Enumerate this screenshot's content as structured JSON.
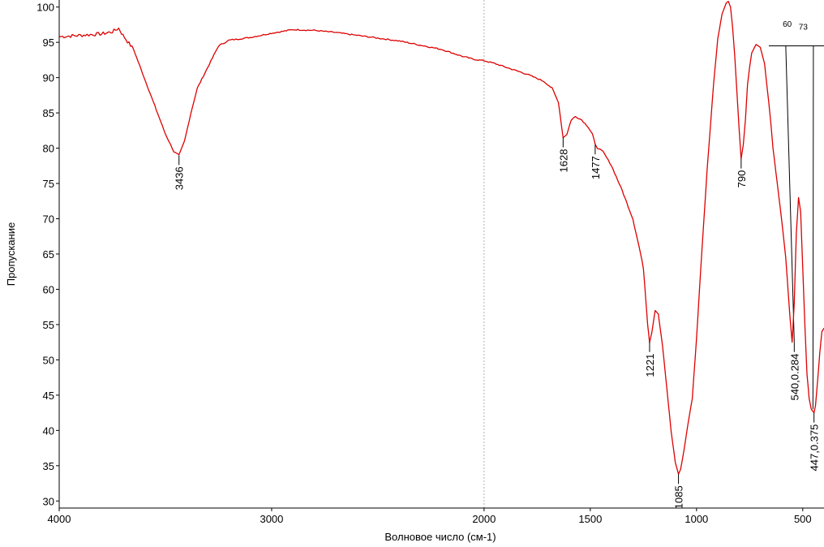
{
  "chart_data": {
    "type": "line",
    "title": "",
    "xlabel": "Волновое число (см-1)",
    "ylabel": "Пропускание",
    "xlim": [
      4000,
      400
    ],
    "ylim": [
      29,
      101
    ],
    "x_ticks": [
      4000,
      3000,
      2000,
      1500,
      1000,
      500
    ],
    "y_ticks": [
      30,
      35,
      40,
      45,
      50,
      55,
      60,
      65,
      70,
      75,
      80,
      85,
      90,
      95,
      100
    ],
    "x_tick_labels": [
      "4000",
      "3000",
      "2000",
      "1500",
      "1000",
      "500"
    ],
    "y_tick_labels": [
      "30",
      "35",
      "40",
      "45",
      "50",
      "55",
      "60",
      "65",
      "70",
      "75",
      "80",
      "85",
      "90",
      "95",
      "100"
    ],
    "reference_line_x": 2000,
    "line_color": "#dd0000",
    "series": [
      {
        "color": "#dd0000",
        "x": [
          4000,
          3900,
          3800,
          3750,
          3720,
          3700,
          3650,
          3600,
          3550,
          3500,
          3460,
          3436,
          3410,
          3380,
          3350,
          3300,
          3250,
          3200,
          3100,
          3000,
          2900,
          2800,
          2700,
          2600,
          2500,
          2400,
          2300,
          2200,
          2100,
          2050,
          2000,
          1950,
          1900,
          1850,
          1800,
          1760,
          1720,
          1680,
          1650,
          1628,
          1610,
          1590,
          1570,
          1540,
          1510,
          1490,
          1477,
          1465,
          1440,
          1400,
          1350,
          1300,
          1270,
          1250,
          1240,
          1230,
          1221,
          1210,
          1195,
          1180,
          1160,
          1140,
          1120,
          1100,
          1085,
          1075,
          1060,
          1040,
          1020,
          1000,
          980,
          950,
          920,
          900,
          880,
          860,
          850,
          840,
          830,
          820,
          810,
          800,
          790,
          780,
          770,
          760,
          750,
          740,
          720,
          700,
          680,
          660,
          650,
          640,
          620,
          600,
          580,
          560,
          550,
          540,
          530,
          520,
          510,
          500,
          490,
          480,
          470,
          460,
          447,
          440,
          430,
          420,
          410,
          400
        ],
        "values": [
          95.8,
          96.0,
          96.2,
          96.5,
          97.0,
          96.0,
          94.0,
          90.0,
          86.0,
          82.0,
          79.5,
          79.0,
          81.0,
          85.0,
          88.5,
          91.5,
          94.5,
          95.3,
          95.7,
          96.3,
          96.8,
          96.7,
          96.4,
          96.0,
          95.6,
          95.2,
          94.6,
          94.0,
          93.0,
          92.6,
          92.4,
          92.0,
          91.5,
          91.0,
          90.5,
          90.0,
          89.5,
          88.5,
          86.5,
          81.5,
          82.0,
          84.0,
          84.5,
          84.0,
          83.0,
          82.0,
          80.5,
          80.0,
          79.5,
          77.5,
          74.0,
          70.0,
          66.0,
          63.0,
          59.0,
          55.0,
          52.5,
          54.0,
          57.0,
          56.5,
          52.0,
          46.0,
          40.0,
          35.5,
          33.8,
          34.5,
          37.0,
          41.0,
          44.5,
          53.0,
          63.0,
          77.0,
          89.0,
          95.5,
          99.0,
          100.6,
          100.8,
          100.0,
          97.0,
          93.0,
          88.0,
          83.0,
          78.5,
          80.5,
          84.0,
          89.0,
          91.5,
          93.5,
          94.7,
          94.3,
          92.0,
          86.5,
          83.5,
          80.0,
          75.0,
          70.0,
          64.5,
          56.0,
          52.5,
          58.0,
          68.0,
          73.0,
          71.0,
          63.0,
          55.0,
          48.0,
          44.5,
          43.0,
          42.5,
          43.5,
          47.0,
          51.0,
          54.0,
          54.5
        ]
      }
    ],
    "peak_labels": [
      {
        "x": 3436,
        "y": 79.0,
        "text": "3436"
      },
      {
        "x": 1628,
        "y": 81.5,
        "text": "1628"
      },
      {
        "x": 1477,
        "y": 80.5,
        "text": "1477"
      },
      {
        "x": 1221,
        "y": 52.5,
        "text": "1221"
      },
      {
        "x": 1085,
        "y": 33.8,
        "text": "1085"
      },
      {
        "x": 790,
        "y": 78.5,
        "text": "790"
      },
      {
        "x": 540,
        "y": 52.5,
        "text": "540,0.284"
      },
      {
        "x": 447,
        "y": 42.5,
        "text": "447,0.375"
      }
    ],
    "baselines": [
      {
        "x1": 660,
        "x2": 400,
        "y": 94.5
      }
    ],
    "band_drops": [
      {
        "x_top": 580,
        "y_top": 94.5,
        "x_bottom": 540,
        "y_bottom": 52.5
      },
      {
        "x_top": 450,
        "y_top": 94.5,
        "x_bottom": 452,
        "y_bottom": 43.0
      }
    ],
    "band_labels": [
      {
        "x": 573,
        "y": 97.2,
        "text": "60"
      },
      {
        "x": 498,
        "y": 96.8,
        "text": "73"
      }
    ]
  }
}
